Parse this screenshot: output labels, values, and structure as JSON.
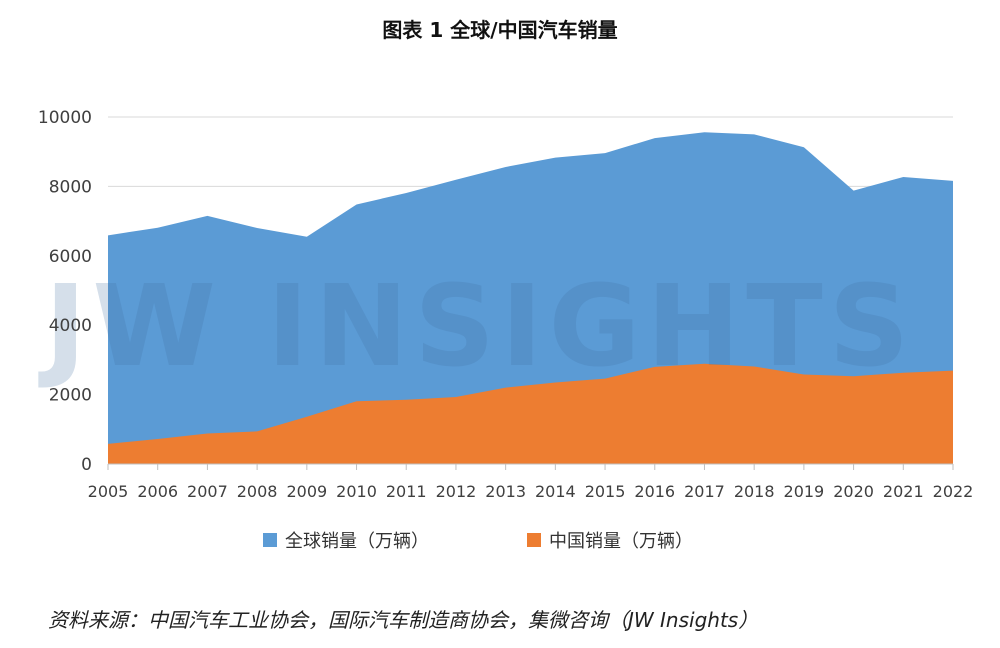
{
  "title": "图表 1  全球/中国汽车销量",
  "source": "资料来源：中国汽车工业协会，国际汽车制造商协会，集微咨询（JW Insights）",
  "watermark": "JW INSIGHTS",
  "colors": {
    "global": "#5B9BD5",
    "china": "#ED7D31",
    "axis": "#BFBFBF",
    "grid": "#D9D9D9"
  },
  "chart_data": {
    "type": "area",
    "x": [
      "2005",
      "2006",
      "2007",
      "2008",
      "2009",
      "2010",
      "2011",
      "2012",
      "2013",
      "2014",
      "2015",
      "2016",
      "2017",
      "2018",
      "2019",
      "2020",
      "2021",
      "2022"
    ],
    "ylim": [
      0,
      10000
    ],
    "yticks": [
      "0",
      "2000",
      "4000",
      "6000",
      "8000",
      "10000"
    ],
    "grid": true,
    "legend_position": "bottom",
    "series": [
      {
        "name": "全球销量（万辆）",
        "color": "#5B9BD5",
        "values": [
          6590,
          6810,
          7150,
          6800,
          6550,
          7480,
          7810,
          8190,
          8560,
          8830,
          8960,
          9390,
          9560,
          9500,
          9130,
          7880,
          8270,
          8160
        ]
      },
      {
        "name": "中国销量（万辆）",
        "color": "#ED7D31",
        "values": [
          580,
          720,
          880,
          940,
          1360,
          1810,
          1850,
          1930,
          2200,
          2350,
          2460,
          2800,
          2890,
          2810,
          2580,
          2530,
          2630,
          2690
        ]
      }
    ]
  }
}
